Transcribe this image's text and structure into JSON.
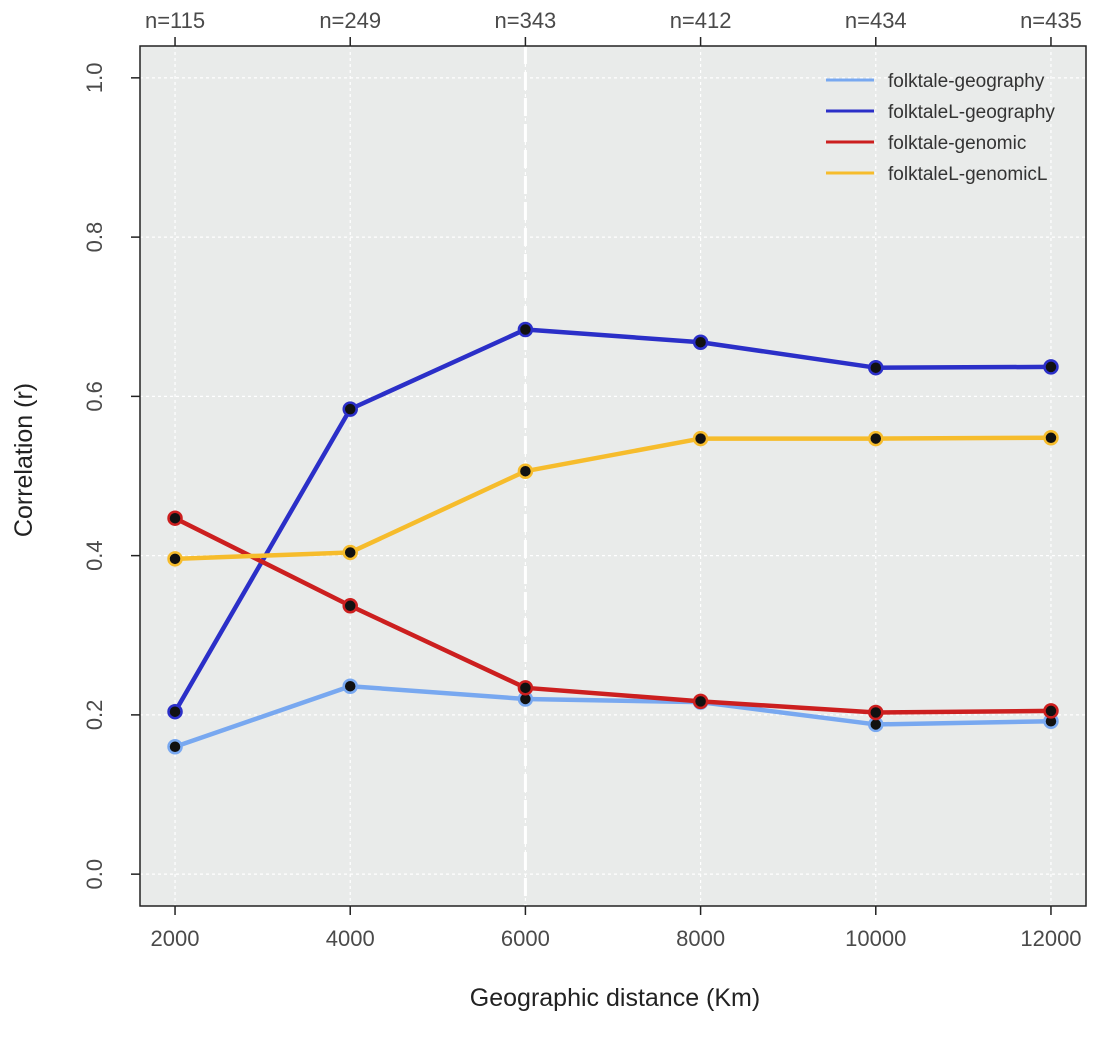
{
  "chart_data": {
    "type": "line",
    "title": "",
    "xlabel": "Geographic distance (Km)",
    "ylabel": "Correlation (r)",
    "x": [
      2000,
      4000,
      6000,
      8000,
      10000,
      12000
    ],
    "xlim": [
      1600,
      12400
    ],
    "ylim": [
      -0.04,
      1.04
    ],
    "x_ticks": [
      "2000",
      "4000",
      "6000",
      "8000",
      "10000",
      "12000"
    ],
    "y_ticks": [
      "0.0",
      "0.2",
      "0.4",
      "0.6",
      "0.8",
      "1.0"
    ],
    "y_tick_values": [
      0.0,
      0.2,
      0.4,
      0.6,
      0.8,
      1.0
    ],
    "top_axis_labels": [
      "n=115",
      "n=249",
      "n=343",
      "n=412",
      "n=434",
      "n=435"
    ],
    "grid": true,
    "highlight_vline_x": 6000,
    "background": "#e9ebea",
    "legend_position": "top-right",
    "series": [
      {
        "name": "folktale-geography",
        "color": "#78a8f0",
        "values": [
          0.16,
          0.236,
          0.22,
          0.216,
          0.188,
          0.192
        ]
      },
      {
        "name": "folktaleL-geography",
        "color": "#2b2fc8",
        "values": [
          0.204,
          0.584,
          0.684,
          0.668,
          0.636,
          0.637
        ]
      },
      {
        "name": "folktale-genomic",
        "color": "#cc1f1f",
        "values": [
          0.447,
          0.337,
          0.234,
          0.217,
          0.203,
          0.205
        ]
      },
      {
        "name": "folktaleL-genomicL",
        "color": "#f6bc2c",
        "values": [
          0.396,
          0.404,
          0.506,
          0.547,
          0.547,
          0.548
        ]
      }
    ]
  }
}
